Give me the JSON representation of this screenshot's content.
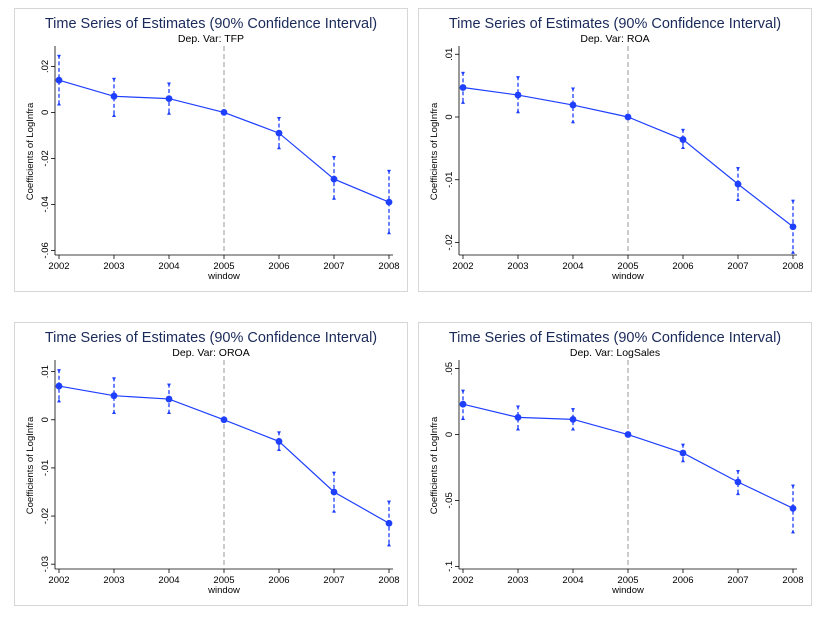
{
  "chart_data": [
    {
      "type": "line",
      "title": "Time Series of Estimates (90% Confidence Interval)",
      "subtitle": "Dep. Var: TFP",
      "xlabel": "window",
      "ylabel": "Coefficients of LogInfra",
      "categories": [
        "2002",
        "2003",
        "2004",
        "2005",
        "2006",
        "2007",
        "2008"
      ],
      "values": [
        0.014,
        0.007,
        0.006,
        0.0,
        -0.009,
        -0.029,
        -0.039
      ],
      "ci_low": [
        0.003,
        -0.002,
        -0.001,
        0.0,
        -0.016,
        -0.038,
        -0.053
      ],
      "ci_high": [
        0.025,
        0.015,
        0.013,
        0.0,
        -0.002,
        -0.019,
        -0.025
      ],
      "ylim": [
        -0.062,
        0.028
      ],
      "yticks": [
        0.02,
        0,
        -0.02,
        -0.04,
        -0.06
      ],
      "ytick_labels": [
        ".02",
        "0",
        "-.02",
        "-.04",
        "-.06"
      ],
      "vline_at": "2005",
      "colors": {
        "series": "#1f3fff",
        "title": "#1a2a5a",
        "ref": "#999999"
      }
    },
    {
      "type": "line",
      "title": "Time Series of Estimates (90% Confidence Interval)",
      "subtitle": "Dep. Var: ROA",
      "xlabel": "window",
      "ylabel": "Coefficients of LogInfra",
      "categories": [
        "2002",
        "2003",
        "2004",
        "2005",
        "2006",
        "2007",
        "2008"
      ],
      "values": [
        0.0047,
        0.0035,
        0.0019,
        0.0,
        -0.0036,
        -0.0107,
        -0.0175
      ],
      "ci_low": [
        0.0021,
        0.0006,
        -0.001,
        0.0,
        -0.0051,
        -0.0134,
        -0.0218
      ],
      "ci_high": [
        0.0072,
        0.0065,
        0.0047,
        0.0,
        -0.0019,
        -0.008,
        -0.0132
      ],
      "ylim": [
        -0.022,
        0.011
      ],
      "yticks": [
        0.01,
        0,
        -0.01,
        -0.02
      ],
      "ytick_labels": [
        ".01",
        "0",
        "-.01",
        "-.02"
      ],
      "vline_at": "2005",
      "colors": {
        "series": "#1f3fff",
        "title": "#1a2a5a",
        "ref": "#999999"
      }
    },
    {
      "type": "line",
      "title": "Time Series of Estimates (90% Confidence Interval)",
      "subtitle": "Dep. Var: OROA",
      "xlabel": "window",
      "ylabel": "Coefficients of LogInfra",
      "categories": [
        "2002",
        "2003",
        "2004",
        "2005",
        "2006",
        "2007",
        "2008"
      ],
      "values": [
        0.007,
        0.005,
        0.0043,
        0.0,
        -0.0045,
        -0.015,
        -0.0215
      ],
      "ci_low": [
        0.0036,
        0.0012,
        0.0012,
        0.0,
        -0.0065,
        -0.0193,
        -0.0263
      ],
      "ci_high": [
        0.0105,
        0.0088,
        0.0075,
        0.0,
        -0.0024,
        -0.0108,
        -0.0168
      ],
      "ylim": [
        -0.031,
        0.012
      ],
      "yticks": [
        0.01,
        0,
        -0.01,
        -0.02,
        -0.03
      ],
      "ytick_labels": [
        ".01",
        "0",
        "-.01",
        "-.02",
        "-.03"
      ],
      "vline_at": "2005",
      "colors": {
        "series": "#1f3fff",
        "title": "#1a2a5a",
        "ref": "#999999"
      }
    },
    {
      "type": "line",
      "title": "Time Series of Estimates (90% Confidence Interval)",
      "subtitle": "Dep. Var: LogSales",
      "xlabel": "window",
      "ylabel": "Coefficients of LogInfra",
      "categories": [
        "2002",
        "2003",
        "2004",
        "2005",
        "2006",
        "2007",
        "2008"
      ],
      "values": [
        0.023,
        0.013,
        0.0115,
        0.0,
        -0.014,
        -0.036,
        -0.056
      ],
      "ci_low": [
        0.011,
        0.003,
        0.003,
        0.0,
        -0.021,
        -0.046,
        -0.075
      ],
      "ci_high": [
        0.034,
        0.022,
        0.02,
        0.0,
        -0.007,
        -0.027,
        -0.038
      ],
      "ylim": [
        -0.102,
        0.055
      ],
      "yticks": [
        0.05,
        0,
        -0.05,
        -0.1
      ],
      "ytick_labels": [
        ".05",
        "0",
        "-.05",
        "-.1"
      ],
      "vline_at": "2005",
      "colors": {
        "series": "#1f3fff",
        "title": "#1a2a5a",
        "ref": "#999999"
      }
    }
  ]
}
